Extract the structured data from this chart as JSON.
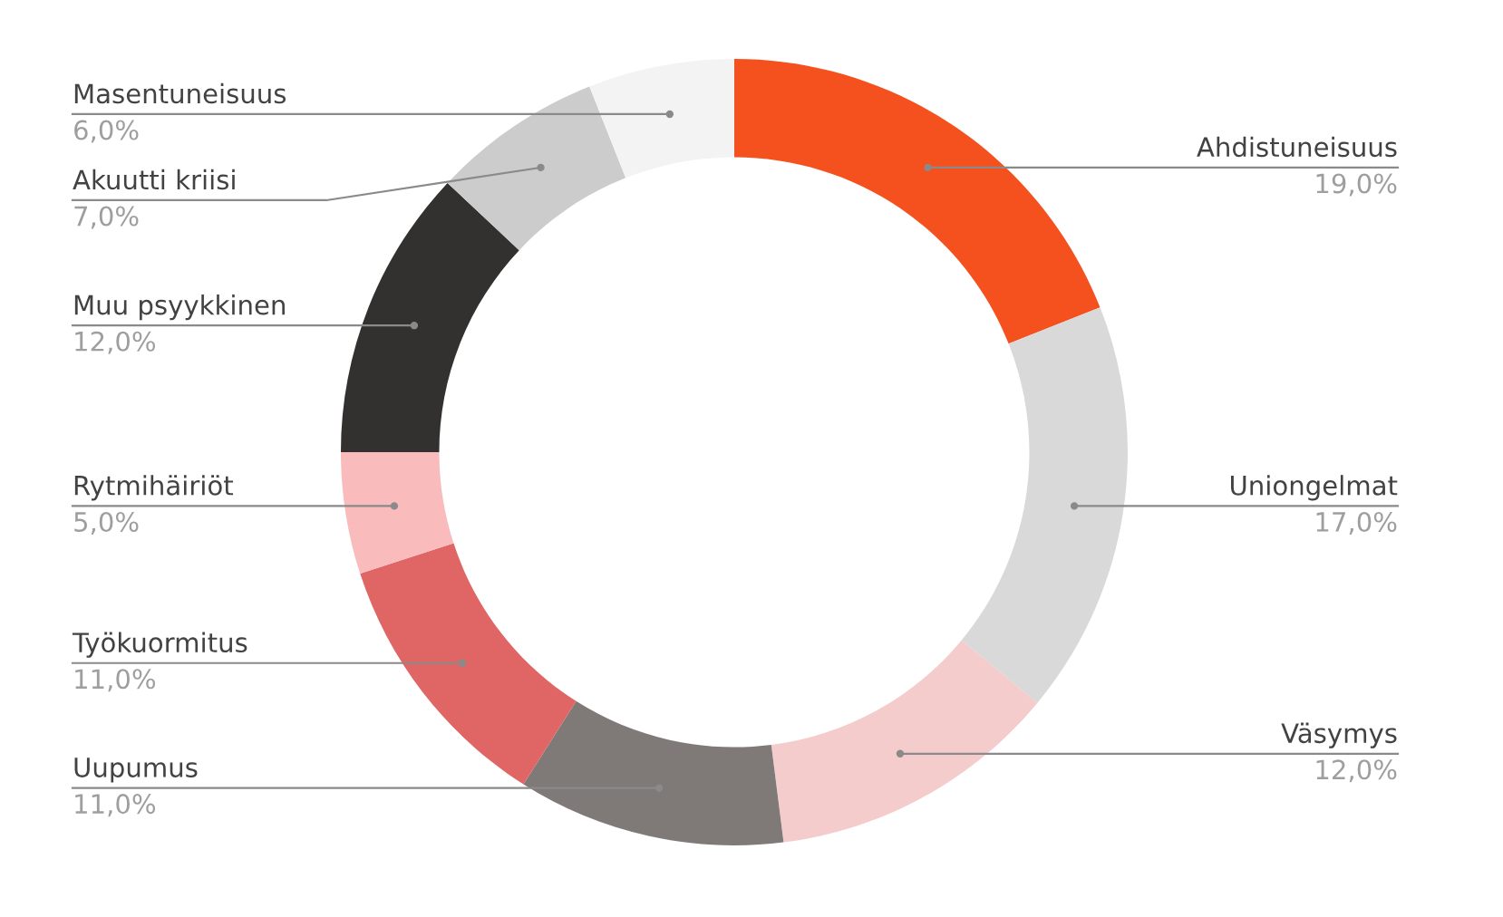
{
  "chart_data": {
    "type": "donut",
    "categories": [
      "Ahdistuneisuus",
      "Uniongelmat",
      "Väsymys",
      "Uupumus",
      "Työkuormitus",
      "Rytmihäiriöt",
      "Muu psyykkinen",
      "Akuutti kriisi",
      "Masentuneisuus"
    ],
    "values": [
      19,
      17,
      12,
      11,
      11,
      5,
      12,
      7,
      6
    ],
    "colors": [
      "#f4511e",
      "#d9d9d9",
      "#f4cccc",
      "#7f7a77",
      "#e06666",
      "#f9bbbb",
      "#333130",
      "#cccccc",
      "#f3f3f3"
    ],
    "value_labels": [
      "19,0%",
      "17,0%",
      "12,0%",
      "11,0%",
      "11,0%",
      "5,0%",
      "12,0%",
      "7,0%",
      "6,0%"
    ]
  }
}
